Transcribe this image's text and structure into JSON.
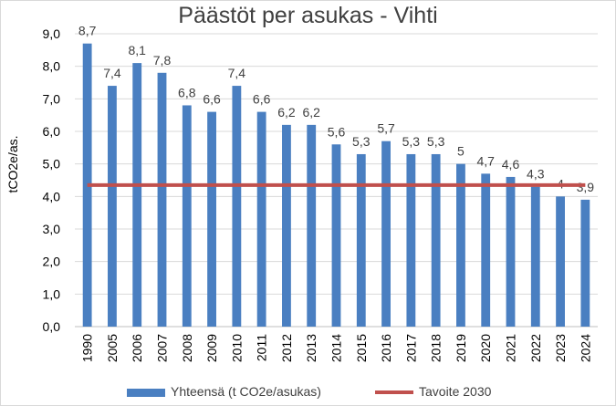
{
  "chart_data": {
    "type": "bar",
    "title": "Päästöt per asukas - Vihti",
    "ylabel": "tCO2e/as.",
    "xlabel": "",
    "ylim": [
      0,
      9
    ],
    "yticks": [
      "0,0",
      "1,0",
      "2,0",
      "3,0",
      "4,0",
      "5,0",
      "6,0",
      "7,0",
      "8,0",
      "9,0"
    ],
    "categories": [
      "1990",
      "2005",
      "2006",
      "2007",
      "2008",
      "2009",
      "2010",
      "2011",
      "2012",
      "2013",
      "2014",
      "2015",
      "2016",
      "2017",
      "2018",
      "2019",
      "2020",
      "2021",
      "2022",
      "2023",
      "2024"
    ],
    "series": [
      {
        "name": "Yhteensä (t CO2e/asukas)",
        "values": [
          8.7,
          7.4,
          8.1,
          7.8,
          6.8,
          6.6,
          7.4,
          6.6,
          6.2,
          6.2,
          5.6,
          5.3,
          5.7,
          5.3,
          5.3,
          5.0,
          4.7,
          4.6,
          4.3,
          4.0,
          3.9
        ],
        "labels": [
          "8,7",
          "7,4",
          "8,1",
          "7,8",
          "6,8",
          "6,6",
          "7,4",
          "6,6",
          "6,2",
          "6,2",
          "5,6",
          "5,3",
          "5,7",
          "5,3",
          "5,3",
          "5",
          "4,7",
          "4,6",
          "4,3",
          "4",
          "3,9"
        ],
        "color": "#4a7fc1"
      }
    ],
    "reference_line": {
      "name": "Tavoite 2030",
      "value": 4.35,
      "color": "#c0504d"
    },
    "grid": true,
    "legend_position": "bottom"
  }
}
